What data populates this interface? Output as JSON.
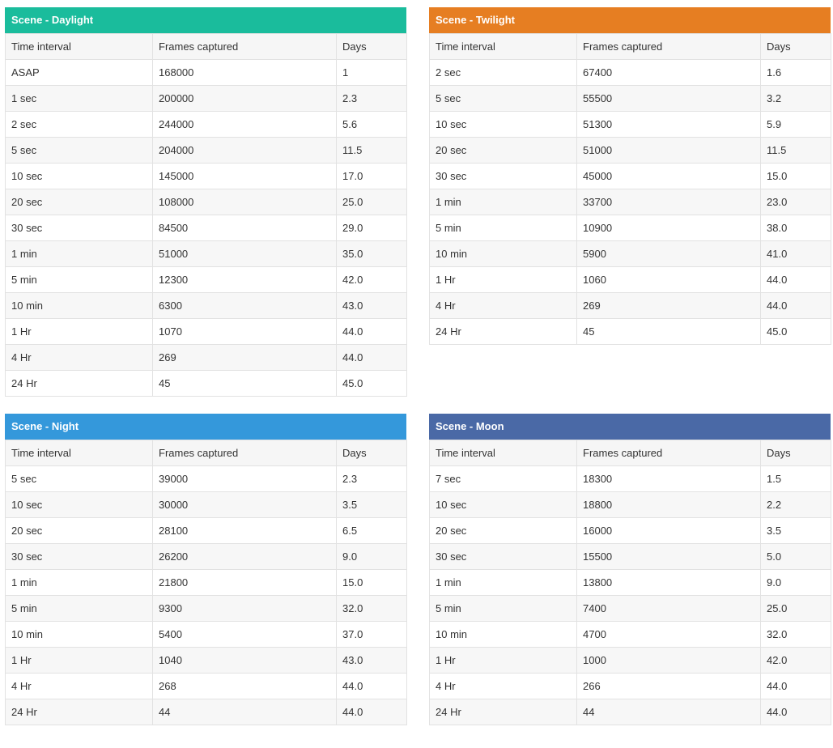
{
  "columns": [
    "Time interval",
    "Frames captured",
    "Days"
  ],
  "panels": [
    {
      "id": "daylight",
      "title": "Scene - Daylight",
      "color": "#1abc9c",
      "rows": [
        [
          "ASAP",
          "168000",
          "1"
        ],
        [
          "1 sec",
          "200000",
          "2.3"
        ],
        [
          "2 sec",
          "244000",
          "5.6"
        ],
        [
          "5 sec",
          "204000",
          "11.5"
        ],
        [
          "10 sec",
          "145000",
          "17.0"
        ],
        [
          "20 sec",
          "108000",
          "25.0"
        ],
        [
          "30 sec",
          "84500",
          "29.0"
        ],
        [
          "1 min",
          "51000",
          "35.0"
        ],
        [
          "5 min",
          "12300",
          "42.0"
        ],
        [
          "10 min",
          "6300",
          "43.0"
        ],
        [
          "1 Hr",
          "1070",
          "44.0"
        ],
        [
          "4 Hr",
          "269",
          "44.0"
        ],
        [
          "24 Hr",
          "45",
          "45.0"
        ]
      ]
    },
    {
      "id": "twilight",
      "title": "Scene - Twilight",
      "color": "#e67e22",
      "rows": [
        [
          "2 sec",
          "67400",
          "1.6"
        ],
        [
          "5 sec",
          "55500",
          "3.2"
        ],
        [
          "10 sec",
          "51300",
          "5.9"
        ],
        [
          "20 sec",
          "51000",
          "11.5"
        ],
        [
          "30 sec",
          "45000",
          "15.0"
        ],
        [
          "1 min",
          "33700",
          "23.0"
        ],
        [
          "5 min",
          "10900",
          "38.0"
        ],
        [
          "10 min",
          "5900",
          "41.0"
        ],
        [
          "1 Hr",
          "1060",
          "44.0"
        ],
        [
          "4 Hr",
          "269",
          "44.0"
        ],
        [
          "24 Hr",
          "45",
          "45.0"
        ]
      ]
    },
    {
      "id": "night",
      "title": "Scene - Night",
      "color": "#3498db",
      "rows": [
        [
          "5 sec",
          "39000",
          "2.3"
        ],
        [
          "10 sec",
          "30000",
          "3.5"
        ],
        [
          "20 sec",
          "28100",
          "6.5"
        ],
        [
          "30 sec",
          "26200",
          "9.0"
        ],
        [
          "1 min",
          "21800",
          "15.0"
        ],
        [
          "5 min",
          "9300",
          "32.0"
        ],
        [
          "10 min",
          "5400",
          "37.0"
        ],
        [
          "1 Hr",
          "1040",
          "43.0"
        ],
        [
          "4 Hr",
          "268",
          "44.0"
        ],
        [
          "24 Hr",
          "44",
          "44.0"
        ]
      ]
    },
    {
      "id": "moon",
      "title": "Scene - Moon",
      "color": "#4a69a6",
      "rows": [
        [
          "7 sec",
          "18300",
          "1.5"
        ],
        [
          "10 sec",
          "18800",
          "2.2"
        ],
        [
          "20 sec",
          "16000",
          "3.5"
        ],
        [
          "30 sec",
          "15500",
          "5.0"
        ],
        [
          "1 min",
          "13800",
          "9.0"
        ],
        [
          "5 min",
          "7400",
          "25.0"
        ],
        [
          "10 min",
          "4700",
          "32.0"
        ],
        [
          "1 Hr",
          "1000",
          "42.0"
        ],
        [
          "4 Hr",
          "266",
          "44.0"
        ],
        [
          "24 Hr",
          "44",
          "44.0"
        ]
      ]
    }
  ]
}
